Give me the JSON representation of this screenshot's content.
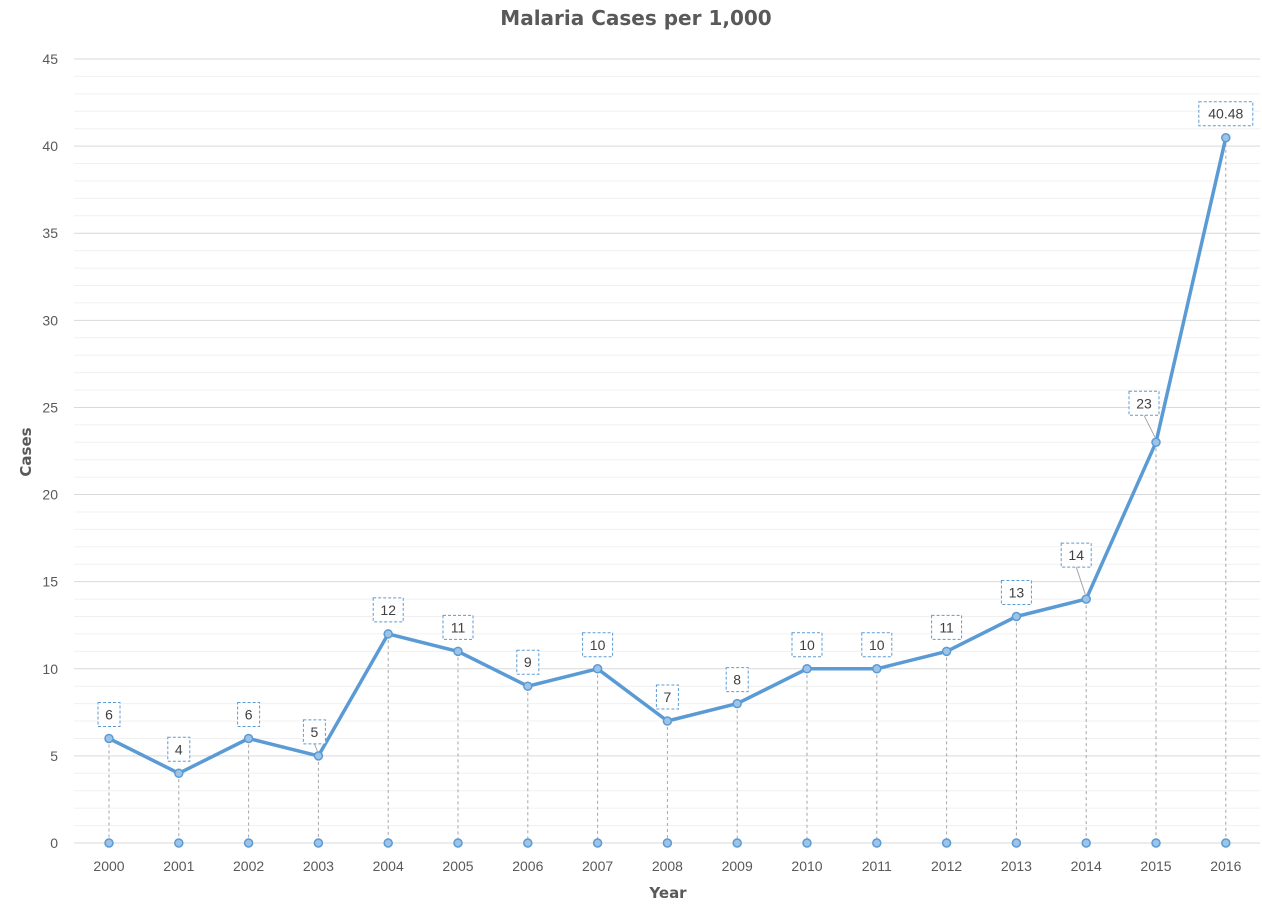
{
  "chart_data": {
    "type": "line",
    "title": "Malaria Cases per 1,000",
    "xlabel": "Year",
    "ylabel": "Cases",
    "categories": [
      "2000",
      "2001",
      "2002",
      "2003",
      "2004",
      "2005",
      "2006",
      "2007",
      "2008",
      "2009",
      "2010",
      "2011",
      "2012",
      "2013",
      "2014",
      "2015",
      "2016"
    ],
    "series": [
      {
        "values": [
          6,
          4,
          6,
          5,
          12,
          11,
          9,
          10,
          7,
          8,
          10,
          10,
          11,
          13,
          14,
          23,
          40.48
        ],
        "data_labels": [
          "6",
          "4",
          "6",
          "5",
          "12",
          "11",
          "9",
          "10",
          "7",
          "8",
          "10",
          "10",
          "11",
          "13",
          "14",
          "23",
          "40.48"
        ]
      }
    ],
    "ylim": [
      0,
      45
    ],
    "y_ticks": [
      "0",
      "5",
      "10",
      "15",
      "20",
      "25",
      "30",
      "35",
      "40",
      "45"
    ],
    "grid": true,
    "drop_lines": true,
    "colors": {
      "line": "#5B9BD5",
      "marker_fill": "#9DC3E6",
      "grid_major": "#D9D9D9",
      "grid_minor": "#F0F0F0",
      "drop_line": "#A6A6A6",
      "label_border": "#5B9BD5"
    }
  }
}
